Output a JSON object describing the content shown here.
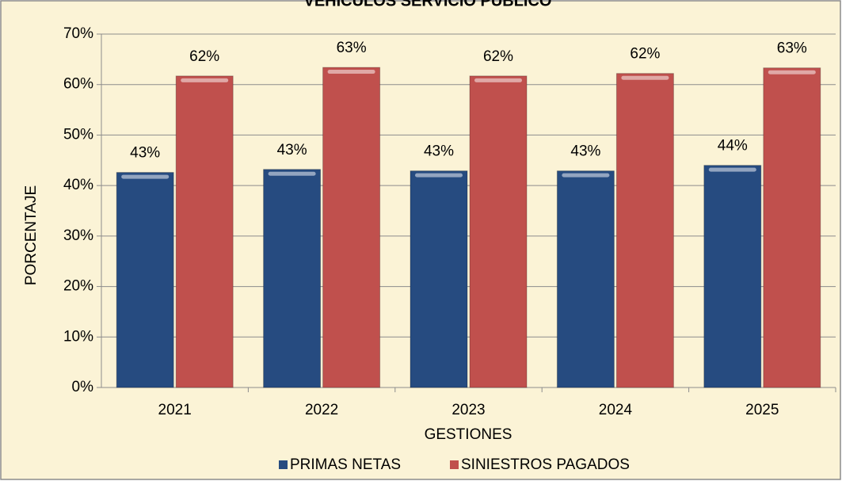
{
  "chart_data": {
    "type": "bar",
    "title": "VEHICULOS SERVICIO PUBLICO",
    "x_label": "GESTIONES",
    "y_label": "PORCENTAJE",
    "categories": [
      "2021",
      "2022",
      "2023",
      "2024",
      "2025"
    ],
    "series": [
      {
        "name": "PRIMAS NETAS",
        "color": "#264b80",
        "values": [
          42.6,
          43.2,
          42.9,
          42.9,
          44.0
        ],
        "value_labels": [
          "43%",
          "43%",
          "43%",
          "43%",
          "44%"
        ]
      },
      {
        "name": "SINIESTROS PAGADOS",
        "color": "#c0504d",
        "values": [
          61.7,
          63.4,
          61.7,
          62.2,
          63.3
        ],
        "value_labels": [
          "62%",
          "63%",
          "62%",
          "62%",
          "63%"
        ]
      }
    ],
    "ylim": [
      0,
      70
    ],
    "yticks": [
      {
        "value": 0,
        "label": "0%"
      },
      {
        "value": 10,
        "label": "10%"
      },
      {
        "value": 20,
        "label": "20%"
      },
      {
        "value": 30,
        "label": "30%"
      },
      {
        "value": 40,
        "label": "40%"
      },
      {
        "value": 50,
        "label": "50%"
      },
      {
        "value": 60,
        "label": "60%"
      },
      {
        "value": 70,
        "label": "70%"
      }
    ],
    "grid": true,
    "legend": "bottom"
  }
}
